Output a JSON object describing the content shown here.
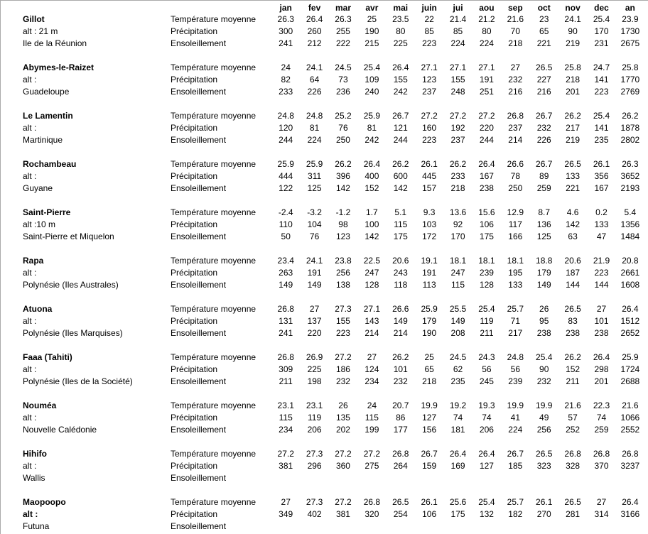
{
  "colors": {
    "background": "#ffffff",
    "text": "#000000",
    "frame_border": "#a9a9a9"
  },
  "table": {
    "month_headers": [
      "jan",
      "fev",
      "mar",
      "avr",
      "mai",
      "juin",
      "jui",
      "aou",
      "sep",
      "oct",
      "nov",
      "dec",
      "an"
    ],
    "measure_labels": {
      "temperature": "Température moyenne",
      "precipitation": "Précipitation",
      "sunshine": "Ensoleillement"
    },
    "stations": [
      {
        "name": "Gillot",
        "alt": "alt : 21 m",
        "alt_bold": false,
        "region": "Ile de la Réunion",
        "temperature": [
          "26.3",
          "26.4",
          "26.3",
          "25",
          "23.5",
          "22",
          "21.4",
          "21.2",
          "21.6",
          "23",
          "24.1",
          "25.4",
          "23.9"
        ],
        "precipitation": [
          "300",
          "260",
          "255",
          "190",
          "80",
          "85",
          "85",
          "80",
          "70",
          "65",
          "90",
          "170",
          "1730"
        ],
        "sunshine": [
          "241",
          "212",
          "222",
          "215",
          "225",
          "223",
          "224",
          "224",
          "218",
          "221",
          "219",
          "231",
          "2675"
        ]
      },
      {
        "name": "Abymes-le-Raizet",
        "alt": "alt :",
        "alt_bold": false,
        "region": "Guadeloupe",
        "temperature": [
          "24",
          "24.1",
          "24.5",
          "25.4",
          "26.4",
          "27.1",
          "27.1",
          "27.1",
          "27",
          "26.5",
          "25.8",
          "24.7",
          "25.8"
        ],
        "precipitation": [
          "82",
          "64",
          "73",
          "109",
          "155",
          "123",
          "155",
          "191",
          "232",
          "227",
          "218",
          "141",
          "1770"
        ],
        "sunshine": [
          "233",
          "226",
          "236",
          "240",
          "242",
          "237",
          "248",
          "251",
          "216",
          "216",
          "201",
          "223",
          "2769"
        ]
      },
      {
        "name": "Le Lamentin",
        "alt": "alt :",
        "alt_bold": false,
        "region": "Martinique",
        "temperature": [
          "24.8",
          "24.8",
          "25.2",
          "25.9",
          "26.7",
          "27.2",
          "27.2",
          "27.2",
          "26.8",
          "26.7",
          "26.2",
          "25.4",
          "26.2"
        ],
        "precipitation": [
          "120",
          "81",
          "76",
          "81",
          "121",
          "160",
          "192",
          "220",
          "237",
          "232",
          "217",
          "141",
          "1878"
        ],
        "sunshine": [
          "244",
          "224",
          "250",
          "242",
          "244",
          "223",
          "237",
          "244",
          "214",
          "226",
          "219",
          "235",
          "2802"
        ]
      },
      {
        "name": "Rochambeau",
        "alt": "alt :",
        "alt_bold": false,
        "region": "Guyane",
        "temperature": [
          "25.9",
          "25.9",
          "26.2",
          "26.4",
          "26.2",
          "26.1",
          "26.2",
          "26.4",
          "26.6",
          "26.7",
          "26.5",
          "26.1",
          "26.3"
        ],
        "precipitation": [
          "444",
          "311",
          "396",
          "400",
          "600",
          "445",
          "233",
          "167",
          "78",
          "89",
          "133",
          "356",
          "3652"
        ],
        "sunshine": [
          "122",
          "125",
          "142",
          "152",
          "142",
          "157",
          "218",
          "238",
          "250",
          "259",
          "221",
          "167",
          "2193"
        ]
      },
      {
        "name": "Saint-Pierre",
        "alt": "alt :10 m",
        "alt_bold": false,
        "region": "Saint-Pierre et Miquelon",
        "temperature": [
          "-2.4",
          "-3.2",
          "-1.2",
          "1.7",
          "5.1",
          "9.3",
          "13.6",
          "15.6",
          "12.9",
          "8.7",
          "4.6",
          "0.2",
          "5.4"
        ],
        "precipitation": [
          "110",
          "104",
          "98",
          "100",
          "115",
          "103",
          "92",
          "106",
          "117",
          "136",
          "142",
          "133",
          "1356"
        ],
        "sunshine": [
          "50",
          "76",
          "123",
          "142",
          "175",
          "172",
          "170",
          "175",
          "166",
          "125",
          "63",
          "47",
          "1484"
        ]
      },
      {
        "name": "Rapa",
        "alt": "alt :",
        "alt_bold": false,
        "region": "Polynésie (Iles Australes)",
        "temperature": [
          "23.4",
          "24.1",
          "23.8",
          "22.5",
          "20.6",
          "19.1",
          "18.1",
          "18.1",
          "18.1",
          "18.8",
          "20.6",
          "21.9",
          "20.8"
        ],
        "precipitation": [
          "263",
          "191",
          "256",
          "247",
          "243",
          "191",
          "247",
          "239",
          "195",
          "179",
          "187",
          "223",
          "2661"
        ],
        "sunshine": [
          "149",
          "149",
          "138",
          "128",
          "118",
          "113",
          "115",
          "128",
          "133",
          "149",
          "144",
          "144",
          "1608"
        ]
      },
      {
        "name": "Atuona",
        "alt": "alt :",
        "alt_bold": false,
        "region": "Polynésie (Iles Marquises)",
        "temperature": [
          "26.8",
          "27",
          "27.3",
          "27.1",
          "26.6",
          "25.9",
          "25.5",
          "25.4",
          "25.7",
          "26",
          "26.5",
          "27",
          "26.4"
        ],
        "precipitation": [
          "131",
          "137",
          "155",
          "143",
          "149",
          "179",
          "149",
          "119",
          "71",
          "95",
          "83",
          "101",
          "1512"
        ],
        "sunshine": [
          "241",
          "220",
          "223",
          "214",
          "214",
          "190",
          "208",
          "211",
          "217",
          "238",
          "238",
          "238",
          "2652"
        ]
      },
      {
        "name": "Faaa (Tahiti)",
        "alt": "alt :",
        "alt_bold": false,
        "region": "Polynésie (Iles de la Société)",
        "temperature": [
          "26.8",
          "26.9",
          "27.2",
          "27",
          "26.2",
          "25",
          "24.5",
          "24.3",
          "24.8",
          "25.4",
          "26.2",
          "26.4",
          "25.9"
        ],
        "precipitation": [
          "309",
          "225",
          "186",
          "124",
          "101",
          "65",
          "62",
          "56",
          "56",
          "90",
          "152",
          "298",
          "1724"
        ],
        "sunshine": [
          "211",
          "198",
          "232",
          "234",
          "232",
          "218",
          "235",
          "245",
          "239",
          "232",
          "211",
          "201",
          "2688"
        ]
      },
      {
        "name": "Nouméa",
        "alt": "alt :",
        "alt_bold": false,
        "region": "Nouvelle Calédonie",
        "temperature": [
          "23.1",
          "23.1",
          "26",
          "24",
          "20.7",
          "19.9",
          "19.2",
          "19.3",
          "19.9",
          "19.9",
          "21.6",
          "22.3",
          "21.6"
        ],
        "precipitation": [
          "115",
          "119",
          "135",
          "115",
          "86",
          "127",
          "74",
          "74",
          "41",
          "49",
          "57",
          "74",
          "1066"
        ],
        "sunshine": [
          "234",
          "206",
          "202",
          "199",
          "177",
          "156",
          "181",
          "206",
          "224",
          "256",
          "252",
          "259",
          "2552"
        ]
      },
      {
        "name": "Hihifo",
        "alt": "alt :",
        "alt_bold": false,
        "region": "Wallis",
        "temperature": [
          "27.2",
          "27.3",
          "27.2",
          "27.2",
          "26.8",
          "26.7",
          "26.4",
          "26.4",
          "26.7",
          "26.5",
          "26.8",
          "26.8",
          "26.8"
        ],
        "precipitation": [
          "381",
          "296",
          "360",
          "275",
          "264",
          "159",
          "169",
          "127",
          "185",
          "323",
          "328",
          "370",
          "3237"
        ],
        "sunshine": []
      },
      {
        "name": "Maopoopo",
        "alt": "alt :",
        "alt_bold": true,
        "region": "Futuna",
        "temperature": [
          "27",
          "27.3",
          "27.2",
          "26.8",
          "26.5",
          "26.1",
          "25.6",
          "25.4",
          "25.7",
          "26.1",
          "26.5",
          "27",
          "26.4"
        ],
        "precipitation": [
          "349",
          "402",
          "381",
          "320",
          "254",
          "106",
          "175",
          "132",
          "182",
          "270",
          "281",
          "314",
          "3166"
        ],
        "sunshine": []
      }
    ]
  }
}
